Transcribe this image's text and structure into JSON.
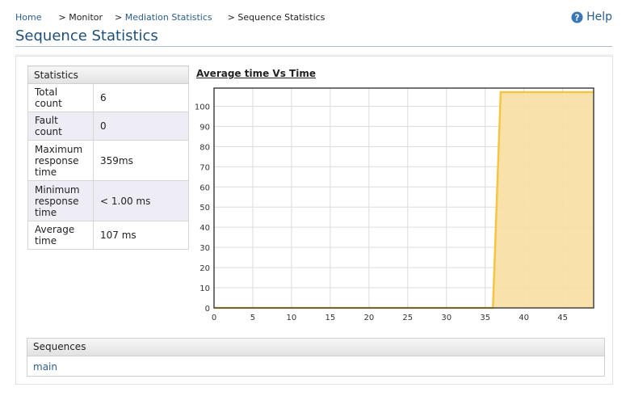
{
  "breadcrumb": {
    "home": "Home",
    "sep": ">",
    "monitor": "Monitor",
    "mediation": "Mediation Statistics",
    "current": "Sequence Statistics"
  },
  "help": {
    "label": "Help",
    "icon": "help-icon"
  },
  "page_title": "Sequence Statistics",
  "stats": {
    "header": "Statistics",
    "rows": [
      {
        "label": "Total count",
        "value": "6"
      },
      {
        "label": "Fault count",
        "value": "0"
      },
      {
        "label": "Maximum response time",
        "value": "359ms"
      },
      {
        "label": "Minimum response time",
        "value": "< 1.00 ms"
      },
      {
        "label": "Average time",
        "value": "107 ms"
      }
    ]
  },
  "chart_data": {
    "type": "area",
    "title": "Average time Vs Time",
    "xlabel": "",
    "ylabel": "",
    "xlim": [
      0,
      49
    ],
    "ylim": [
      0,
      109
    ],
    "x_ticks": [
      0,
      5,
      10,
      15,
      20,
      25,
      30,
      35,
      40,
      45
    ],
    "y_ticks": [
      0,
      10,
      20,
      30,
      40,
      50,
      60,
      70,
      80,
      90,
      100
    ],
    "grid": true,
    "series": [
      {
        "x": [
          0,
          36,
          37,
          49
        ],
        "y": [
          0,
          0,
          107,
          107
        ],
        "color": "#f5c542",
        "fill": "#f7dfa1"
      }
    ]
  },
  "sequences": {
    "header": "Sequences",
    "items": [
      "main"
    ]
  },
  "colors": {
    "link": "#2a5d8c",
    "title": "#1e4f7a",
    "series": "#f5c542"
  }
}
